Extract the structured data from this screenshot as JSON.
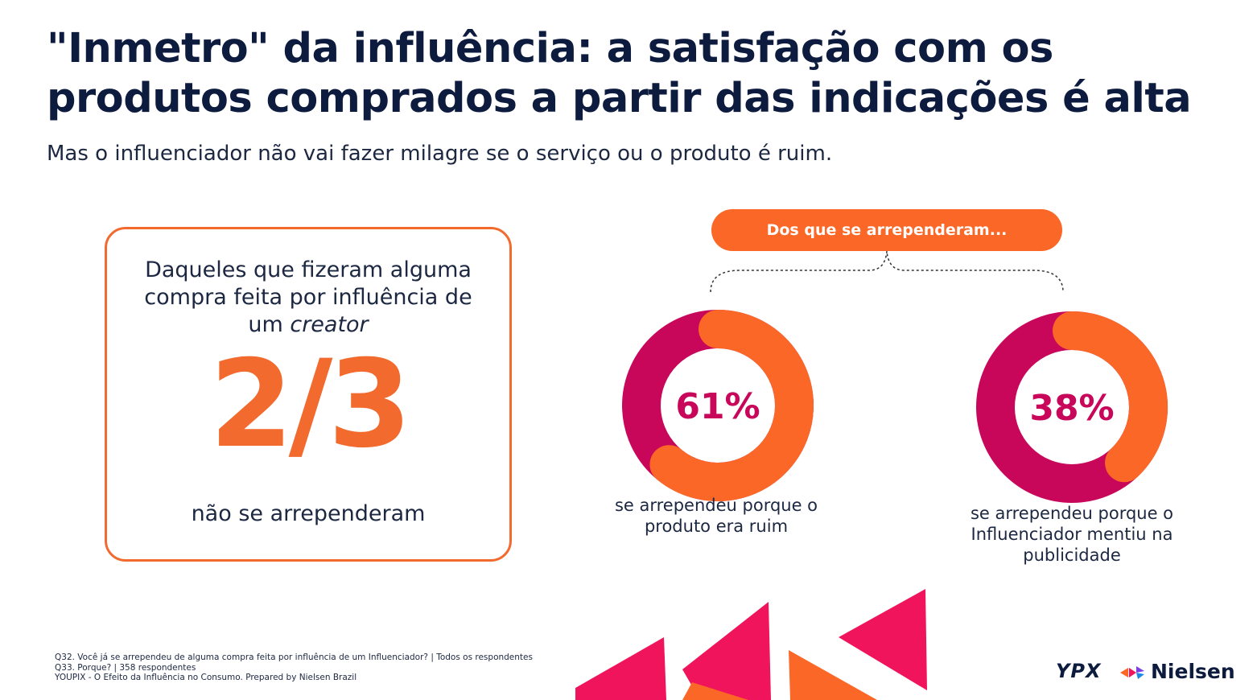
{
  "header": {
    "title_line1": "\"Inmetro\" da influência: a satisfação com os",
    "title_line2": "produtos comprados a partir das indicações é alta",
    "subtitle": "Mas o influenciador não vai fazer milagre se o serviço ou o produto é ruim."
  },
  "card": {
    "intro_line1": "Daqueles que fizeram alguma",
    "intro_line2": "compra feita por influência de",
    "intro_line3_prefix": "um ",
    "intro_line3_em": "creator",
    "value": "2/3",
    "outro": "não se arrependeram"
  },
  "regret_header": "Dos que se arrependeram...",
  "chart_data": [
    {
      "type": "pie",
      "values": [
        61,
        39
      ],
      "center_label": "61%",
      "label_lines": [
        "se arrependeu porque o",
        "produto era ruim"
      ]
    },
    {
      "type": "pie",
      "values": [
        38,
        62
      ],
      "center_label": "38%",
      "label_lines": [
        "se arrependeu porque o",
        "Influenciador mentiu na",
        "publicidade"
      ]
    }
  ],
  "colors": {
    "orange": "#fb6726",
    "magenta": "#c8075a",
    "navy": "#0d1b3e",
    "pink": "#f0145c"
  },
  "footnotes": [
    "Q32. Você já se arrependeu de alguma compra feita por influência de um Influenciador? | Todos os respondentes",
    "Q33. Porque? | 358 respondentes",
    "YOUPIX - O Efeito da Influência no Consumo.  Prepared by Nielsen Brazil"
  ],
  "logos": {
    "ypx": "YPX",
    "nielsen": "Nielsen"
  }
}
